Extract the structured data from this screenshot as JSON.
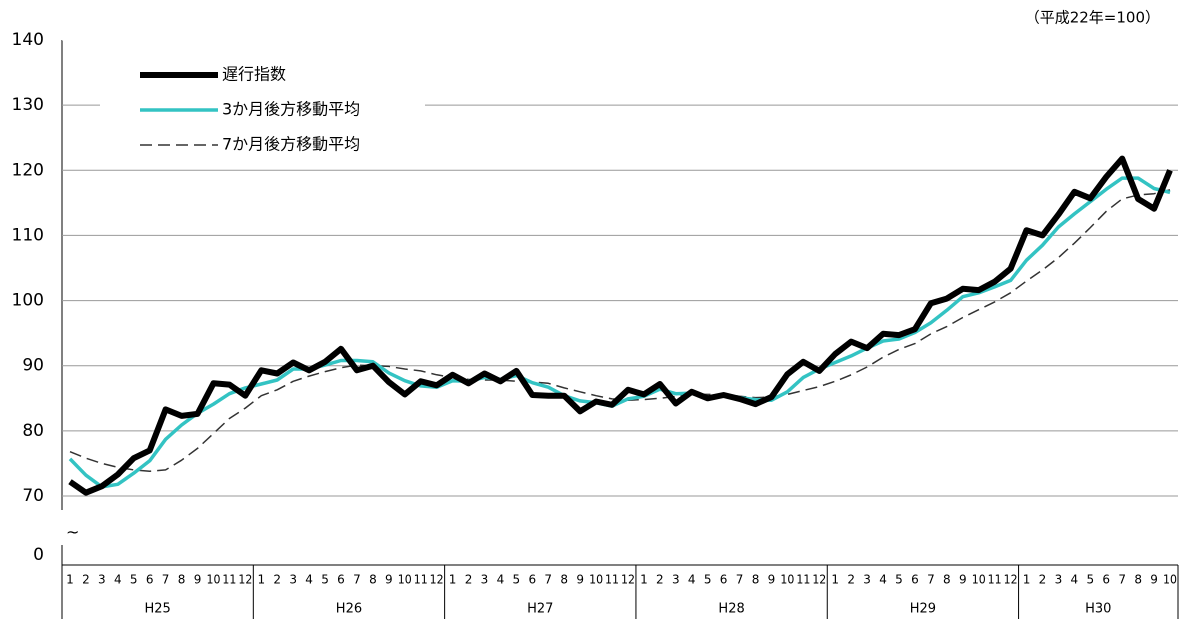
{
  "chart_data": {
    "type": "line",
    "annotation": "（平成22年=100）",
    "categories": [
      "1",
      "2",
      "3",
      "4",
      "5",
      "6",
      "7",
      "8",
      "9",
      "10",
      "11",
      "12",
      "1",
      "2",
      "3",
      "4",
      "5",
      "6",
      "7",
      "8",
      "9",
      "10",
      "11",
      "12",
      "1",
      "2",
      "3",
      "4",
      "5",
      "6",
      "7",
      "8",
      "9",
      "10",
      "11",
      "12",
      "1",
      "2",
      "3",
      "4",
      "5",
      "6",
      "7",
      "8",
      "9",
      "10",
      "11",
      "12",
      "1",
      "2",
      "3",
      "4",
      "5",
      "6",
      "7",
      "8",
      "9",
      "10",
      "11",
      "12",
      "1",
      "2",
      "3",
      "4",
      "5",
      "6",
      "7",
      "8",
      "9",
      "10"
    ],
    "groups": [
      "H25",
      "H26",
      "H27",
      "H28",
      "H29",
      "H30"
    ],
    "series": [
      {
        "name": "遅行指数",
        "color": "#000000",
        "style": "solid",
        "width": 6,
        "values": [
          72.2,
          70.5,
          71.5,
          73.3,
          75.8,
          77.0,
          83.3,
          82.3,
          82.6,
          87.3,
          87.1,
          85.4,
          89.3,
          88.8,
          90.5,
          89.3,
          90.6,
          92.6,
          89.3,
          90.0,
          87.5,
          85.6,
          87.6,
          87.0,
          88.6,
          87.3,
          88.8,
          87.6,
          89.2,
          85.5,
          85.4,
          85.4,
          83.0,
          84.5,
          84.0,
          86.3,
          85.6,
          87.2,
          84.2,
          86.0,
          85.0,
          85.5,
          84.9,
          84.1,
          85.2,
          88.7,
          90.6,
          89.2,
          91.8,
          93.7,
          92.7,
          94.9,
          94.7,
          95.6,
          99.6,
          100.3,
          101.8,
          101.6,
          102.9,
          104.9,
          110.8,
          110.0,
          113.2,
          116.7,
          115.7,
          119.0,
          121.8,
          115.6,
          114.1,
          120.0
        ]
      },
      {
        "name": "3か月後方移動平均",
        "color": "#33c3c3",
        "style": "solid",
        "width": 3.5,
        "values": [
          75.7,
          73.2,
          71.4,
          71.8,
          73.5,
          75.4,
          78.7,
          80.9,
          82.7,
          84.1,
          85.7,
          86.6,
          87.2,
          87.8,
          89.5,
          89.5,
          90.1,
          90.8,
          90.8,
          90.6,
          88.9,
          87.7,
          86.9,
          86.7,
          87.7,
          87.6,
          88.2,
          87.9,
          88.5,
          87.4,
          86.7,
          85.4,
          84.6,
          84.3,
          83.8,
          84.9,
          85.3,
          86.4,
          85.7,
          85.8,
          85.1,
          85.5,
          85.1,
          84.8,
          84.7,
          86.0,
          88.2,
          89.5,
          90.5,
          91.5,
          92.7,
          93.8,
          94.1,
          95.1,
          96.6,
          98.5,
          100.6,
          101.2,
          102.1,
          103.1,
          106.2,
          108.5,
          111.3,
          113.3,
          115.2,
          117.1,
          118.8,
          118.8,
          117.2,
          116.6
        ]
      },
      {
        "name": "7か月後方移動平均",
        "color": "#333333",
        "style": "dashed",
        "width": 1.5,
        "values": [
          76.8,
          75.8,
          75.0,
          74.4,
          74.0,
          73.8,
          74.0,
          75.5,
          77.3,
          79.6,
          81.9,
          83.5,
          85.4,
          86.3,
          87.6,
          88.4,
          89.1,
          89.7,
          90.1,
          90.0,
          89.9,
          89.5,
          89.2,
          88.6,
          88.2,
          87.9,
          87.8,
          87.8,
          87.6,
          87.5,
          87.3,
          86.6,
          86.0,
          85.4,
          84.9,
          84.7,
          84.8,
          85.0,
          85.3,
          85.6,
          85.6,
          85.6,
          85.3,
          85.1,
          85.2,
          85.6,
          86.2,
          86.8,
          87.6,
          88.6,
          89.8,
          91.3,
          92.5,
          93.4,
          94.9,
          96.0,
          97.4,
          98.6,
          99.8,
          101.2,
          103.0,
          104.7,
          106.6,
          108.8,
          111.2,
          113.7,
          115.6,
          116.2,
          116.4,
          117.0
        ]
      }
    ],
    "ylim": [
      70,
      140
    ],
    "yticks": [
      70,
      80,
      90,
      100,
      110,
      120,
      130,
      140
    ],
    "ybreak_tick": 0,
    "grid": true,
    "legend": "upper-left"
  }
}
